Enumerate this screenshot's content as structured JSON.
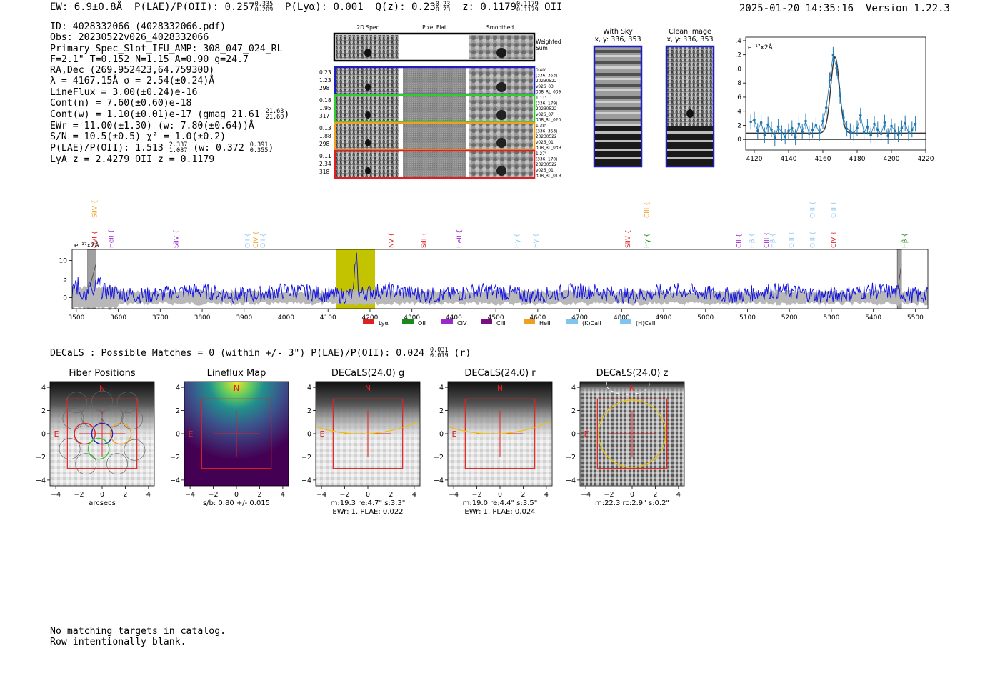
{
  "header": {
    "ew": "EW: 6.9±0.8Å",
    "plae": "P(LAE)/P(OII): 0.257",
    "plae_hi": "0.335",
    "plae_lo": "0.209",
    "plya": "P(Lyα): 0.001",
    "qz": "Q(z): 0.23",
    "qz_hi": "0.23",
    "qz_lo": "0.23",
    "z": "z: 0.1179",
    "z_hi": "0.1179",
    "z_lo": "0.1179",
    "z_line": "OII",
    "datetime": "2025-01-20 14:35:16",
    "version": "Version 1.22.3"
  },
  "info": {
    "id": "ID: 4028332066 (4028332066.pdf)",
    "obs": "Obs: 20230522v026_4028332066",
    "primary": "Primary Spec_Slot_IFU_AMP: 308_047_024_RL",
    "fiber": "F=2.1\"  T=0.152  N=1.15  A=0.90  g=24.7",
    "radec": "RA,Dec (269.952423,64.759300)",
    "lambda": "λ = 4167.15Å  σ = 2.54(±0.24)Å",
    "lineflux": "LineFlux = 3.00(±0.24)e-16",
    "contn": "Cont(n) = 7.60(±0.60)e-18",
    "contw": "Cont(w) = 1.10(±0.01)e-17 (gmag 21.61",
    "contw_hi": "21.63",
    "contw_lo": "21.60",
    "ewr": "EWr = 11.00(±1.30) (w: 7.80(±0.64))Å",
    "sn": "S/N = 10.5(±0.5)  χ² = 1.0(±0.2)",
    "plae_a": "P(LAE)/P(OII): 1.513",
    "plae_a_hi": "2.337",
    "plae_a_lo": "1.087",
    "plae_w": "(w: 0.372",
    "plae_w_hi": "0.391",
    "plae_w_lo": "0.355",
    "lyaz": "LyA z = 2.4279  OII z = 0.1179"
  },
  "cutouts": {
    "col_headers": [
      "2D Spec",
      "Pixel Flat",
      "Smoothed"
    ],
    "weighted_label": [
      "Weighted",
      "Sum"
    ],
    "rows": [
      {
        "left": [
          "0.23",
          "1.23",
          "298"
        ],
        "right": [
          "0.40\"",
          "(336, 353)",
          "20230522",
          "v026_03",
          "308_RL_039"
        ],
        "color": "#1f1fbf"
      },
      {
        "left": [
          "0.18",
          "1.95",
          "317"
        ],
        "right": [
          "1.11\"",
          "(336, 179)",
          "20230522",
          "v026_07",
          "308_RL_020"
        ],
        "color": "#2ecc2e"
      },
      {
        "left": [
          "0.13",
          "1.88",
          "298"
        ],
        "right": [
          "1.38\"",
          "(336, 353)",
          "20230522",
          "v026_01",
          "308_RL_039"
        ],
        "color": "#f0a020"
      },
      {
        "left": [
          "0.11",
          "2.34",
          "318"
        ],
        "right": [
          "1.27\"",
          "(336, 170)",
          "20230522",
          "v026_01",
          "308_RL_019"
        ],
        "color": "#e02020"
      }
    ],
    "with_sky": [
      "With Sky",
      "x, y: 336, 353"
    ],
    "clean_image": [
      "Clean Image",
      "x, y: 336, 353"
    ]
  },
  "chart_data": [
    {
      "type": "line",
      "name": "zoom-spectrum",
      "ylabel": "e⁻¹⁷x2Å",
      "xlim": [
        4115,
        4220
      ],
      "ylim": [
        -1.5,
        14.5
      ],
      "xticks": [
        4120,
        4140,
        4160,
        4180,
        4200,
        4220
      ],
      "yticks": [
        0,
        2,
        4,
        6,
        8,
        10,
        12,
        14
      ],
      "x": [
        4118,
        4120,
        4122,
        4124,
        4126,
        4128,
        4130,
        4132,
        4134,
        4136,
        4138,
        4140,
        4142,
        4144,
        4146,
        4148,
        4150,
        4152,
        4154,
        4156,
        4158,
        4160,
        4162,
        4164,
        4166,
        4168,
        4170,
        4172,
        4174,
        4176,
        4178,
        4180,
        4182,
        4184,
        4186,
        4188,
        4190,
        4192,
        4194,
        4196,
        4198,
        4200,
        4202,
        4204,
        4206,
        4208,
        4210,
        4212,
        4214
      ],
      "y": [
        2.5,
        2.8,
        1.2,
        2.4,
        0.6,
        2.1,
        1.4,
        0.2,
        1.8,
        0.9,
        0.4,
        1.2,
        1.6,
        0.3,
        2.2,
        1.1,
        2.6,
        0.8,
        1.3,
        2.0,
        0.9,
        2.6,
        4.5,
        8.4,
        12.0,
        10.1,
        6.2,
        3.1,
        1.5,
        1.2,
        0.9,
        1.6,
        3.4,
        1.0,
        1.8,
        0.6,
        2.2,
        1.4,
        0.8,
        2.4,
        0.5,
        1.9,
        1.2,
        0.7,
        1.6,
        2.3,
        0.9,
        1.4,
        2.2
      ],
      "fit": {
        "amplitude": 10.8,
        "center": 4167.15,
        "sigma": 2.54,
        "continuum": 0.9
      }
    },
    {
      "type": "line",
      "name": "full-spectrum",
      "ylabel": "e⁻¹⁷x2Å",
      "xlim": [
        3490,
        5530
      ],
      "ylim": [
        -3,
        13
      ],
      "xticks": [
        3500,
        3600,
        3700,
        3800,
        3900,
        4000,
        4100,
        4200,
        4300,
        4400,
        4500,
        4600,
        4700,
        4800,
        4900,
        5000,
        5100,
        5200,
        5300,
        5400,
        5500
      ],
      "yticks": [
        0,
        5,
        10
      ],
      "highlight_band": [
        4120,
        4212
      ],
      "peak": {
        "x": 4167,
        "y": 11.8
      },
      "masked_regions": [
        [
          3527,
          3547
        ],
        [
          5457,
          5467
        ]
      ],
      "line_labels": [
        {
          "label": "SiIV",
          "x": 3544,
          "row": 0,
          "color": "#f0a020"
        },
        {
          "label": "OVI",
          "x": 3544,
          "row": 1,
          "color": "#e02020"
        },
        {
          "label": "HeII",
          "x": 3583,
          "row": 1,
          "color": "#9c27d0"
        },
        {
          "label": "SiIV",
          "x": 3738,
          "row": 1,
          "color": "#9c27d0"
        },
        {
          "label": "OII",
          "x": 3908,
          "row": 1,
          "color": "#90c8ef"
        },
        {
          "label": "CIV",
          "x": 3928,
          "row": 1,
          "color": "#f0a020"
        },
        {
          "label": "OII",
          "x": 3945,
          "row": 1,
          "color": "#90c8ef"
        },
        {
          "label": "NV",
          "x": 4250,
          "row": 1,
          "color": "#e02020"
        },
        {
          "label": "SiII",
          "x": 4328,
          "row": 1,
          "color": "#e02020"
        },
        {
          "label": "HeII",
          "x": 4413,
          "row": 1,
          "color": "#9c27d0"
        },
        {
          "label": "Hγ",
          "x": 4550,
          "row": 1,
          "color": "#90c8ef"
        },
        {
          "label": "Hγ",
          "x": 4595,
          "row": 1,
          "color": "#90c8ef"
        },
        {
          "label": "SiIV",
          "x": 4815,
          "row": 1,
          "color": "#e02020"
        },
        {
          "label": "CIII",
          "x": 4860,
          "row": 0,
          "color": "#f0a020"
        },
        {
          "label": "Hγ",
          "x": 4860,
          "row": 1,
          "color": "#1a8a1a"
        },
        {
          "label": "CII",
          "x": 5080,
          "row": 1,
          "color": "#9c27d0"
        },
        {
          "label": "Hβ",
          "x": 5110,
          "row": 1,
          "color": "#90c8ef"
        },
        {
          "label": "CIII",
          "x": 5145,
          "row": 1,
          "color": "#9c27d0"
        },
        {
          "label": "Hβ",
          "x": 5160,
          "row": 1,
          "color": "#90c8ef"
        },
        {
          "label": "OIII",
          "x": 5205,
          "row": 1,
          "color": "#90c8ef"
        },
        {
          "label": "OIII",
          "x": 5255,
          "row": 0,
          "color": "#90c8ef"
        },
        {
          "label": "OIII",
          "x": 5255,
          "row": 1,
          "color": "#90c8ef"
        },
        {
          "label": "OIII",
          "x": 5305,
          "row": 0,
          "color": "#90c8ef"
        },
        {
          "label": "CIV",
          "x": 5305,
          "row": 1,
          "color": "#e02020"
        },
        {
          "label": "Hβ",
          "x": 5475,
          "row": 1,
          "color": "#1a8a1a"
        }
      ],
      "legend": [
        {
          "label": "Lyα",
          "color": "#e02020"
        },
        {
          "label": "OII",
          "color": "#1a8a1a"
        },
        {
          "label": "CIV",
          "color": "#9c27d0"
        },
        {
          "label": "CIII",
          "color": "#7a1080"
        },
        {
          "label": "HeII",
          "color": "#f0a020"
        },
        {
          "label": "(K)CaII",
          "color": "#7ec6ef"
        },
        {
          "label": "(H)CaII",
          "color": "#7ec6ef"
        }
      ]
    }
  ],
  "decals": {
    "summary": "DECaLS : Possible Matches = 0 (within +/- 3\")  P(LAE)/P(OII): 0.024",
    "summary_hi": "0.031",
    "summary_lo": "0.019",
    "summary_band": "(r)",
    "panels": [
      {
        "title": "Fiber Positions",
        "caption1": "arcsecs",
        "caption2": ""
      },
      {
        "title": "Lineflux Map",
        "caption1": "s/b: 0.80 +/- 0.015",
        "caption2": ""
      },
      {
        "title": "DECaLS(24.0) g",
        "caption1": "m:19.3  re:4.7\"  s:3.3\"",
        "caption2": "EWr: 1. PLAE: 0.022"
      },
      {
        "title": "DECaLS(24.0) r",
        "caption1": "m:19.0  re:4.4\"  s:3.5\"",
        "caption2": "EWr: 1. PLAE: 0.024"
      },
      {
        "title": "DECaLS(24.0) z",
        "caption1": "m:22.3 rc:2.9\"  s:0.2\"",
        "caption2": ""
      }
    ],
    "axis_ticks": [
      "−4",
      "−2",
      "0",
      "2",
      "4"
    ],
    "north": "N",
    "east": "E"
  },
  "footer": {
    "line1": "No matching targets in catalog.",
    "line2": "Row intentionally blank."
  }
}
